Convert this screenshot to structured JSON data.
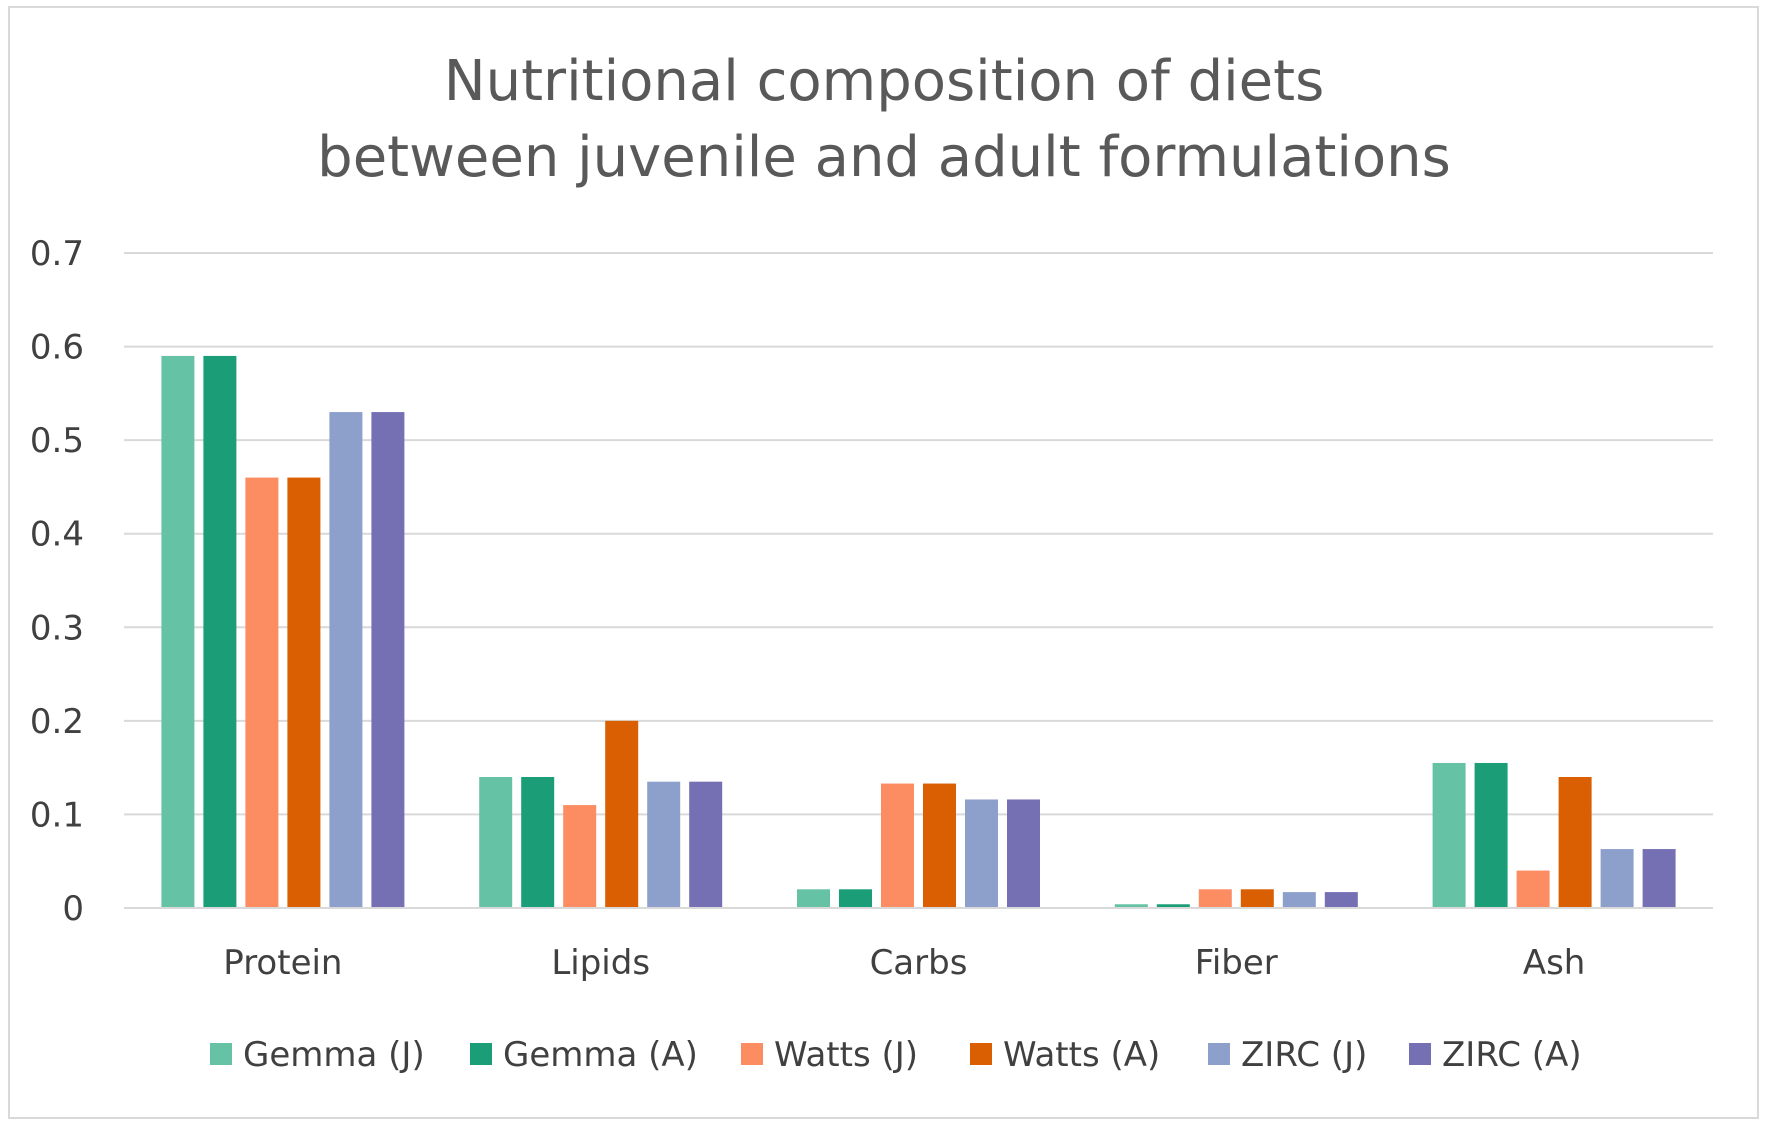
{
  "chart_data": {
    "type": "bar",
    "title_lines": [
      "Nutritional composition of diets",
      "between juvenile and adult formulations"
    ],
    "categories": [
      "Protein",
      "Lipids",
      "Carbs",
      "Fiber",
      "Ash"
    ],
    "series": [
      {
        "name": "Gemma (J)",
        "color": "#66c2a5",
        "values": [
          0.59,
          0.14,
          0.02,
          0.004,
          0.155
        ]
      },
      {
        "name": "Gemma (A)",
        "color": "#1b9e77",
        "values": [
          0.59,
          0.14,
          0.02,
          0.004,
          0.155
        ]
      },
      {
        "name": "Watts (J)",
        "color": "#fc8d62",
        "values": [
          0.46,
          0.11,
          0.133,
          0.02,
          0.04
        ]
      },
      {
        "name": "Watts (A)",
        "color": "#d95f02",
        "values": [
          0.46,
          0.2,
          0.133,
          0.02,
          0.14
        ]
      },
      {
        "name": "ZIRC (J)",
        "color": "#8da0cb",
        "values": [
          0.53,
          0.135,
          0.116,
          0.017,
          0.063
        ]
      },
      {
        "name": "ZIRC (A)",
        "color": "#7570b3",
        "values": [
          0.53,
          0.135,
          0.116,
          0.017,
          0.063
        ]
      }
    ],
    "y_ticks": [
      "0",
      "0.1",
      "0.2",
      "0.3",
      "0.4",
      "0.5",
      "0.6",
      "0.7"
    ],
    "ylim": [
      0,
      0.7
    ],
    "grid": true,
    "legend_position": "bottom",
    "xlabel": "",
    "ylabel": ""
  }
}
